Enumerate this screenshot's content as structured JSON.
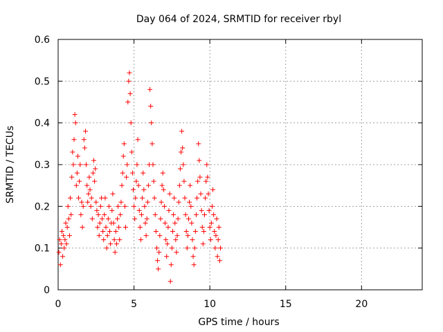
{
  "chart_data": {
    "type": "scatter",
    "title": "Day 064 of 2024, SRMTID for receiver rbyl",
    "xlabel": "GPS time / hours",
    "ylabel": "SRMTID / TECUs",
    "xlim": [
      0,
      24
    ],
    "ylim": [
      0,
      0.6
    ],
    "xticks": [
      0,
      5,
      10,
      15,
      20
    ],
    "xtick_labels": [
      "0",
      "5",
      "10",
      "15",
      "20"
    ],
    "yticks": [
      0,
      0.1,
      0.2,
      0.3,
      0.4,
      0.5,
      0.6
    ],
    "ytick_labels": [
      "0",
      "0.1",
      "0.2",
      "0.3",
      "0.4",
      "0.5",
      "0.6"
    ],
    "grid": true,
    "marker": "+",
    "color": "#ff0000",
    "series": [
      {
        "name": "SRMTID",
        "points": [
          [
            0.05,
            0.09
          ],
          [
            0.1,
            0.12
          ],
          [
            0.15,
            0.06
          ],
          [
            0.2,
            0.11
          ],
          [
            0.25,
            0.14
          ],
          [
            0.3,
            0.08
          ],
          [
            0.35,
            0.13
          ],
          [
            0.4,
            0.1
          ],
          [
            0.45,
            0.12
          ],
          [
            0.5,
            0.16
          ],
          [
            0.55,
            0.11
          ],
          [
            0.6,
            0.15
          ],
          [
            0.65,
            0.2
          ],
          [
            0.7,
            0.17
          ],
          [
            0.75,
            0.13
          ],
          [
            0.8,
            0.22
          ],
          [
            0.85,
            0.18
          ],
          [
            0.9,
            0.27
          ],
          [
            0.95,
            0.33
          ],
          [
            1.0,
            0.3
          ],
          [
            1.05,
            0.36
          ],
          [
            1.1,
            0.42
          ],
          [
            1.15,
            0.4
          ],
          [
            1.2,
            0.25
          ],
          [
            1.25,
            0.28
          ],
          [
            1.3,
            0.32
          ],
          [
            1.35,
            0.22
          ],
          [
            1.4,
            0.26
          ],
          [
            1.45,
            0.3
          ],
          [
            1.5,
            0.18
          ],
          [
            1.55,
            0.21
          ],
          [
            1.6,
            0.15
          ],
          [
            1.65,
            0.2
          ],
          [
            1.7,
            0.36
          ],
          [
            1.75,
            0.34
          ],
          [
            1.8,
            0.38
          ],
          [
            1.85,
            0.3
          ],
          [
            1.9,
            0.25
          ],
          [
            1.95,
            0.21
          ],
          [
            2.0,
            0.23
          ],
          [
            2.05,
            0.27
          ],
          [
            2.1,
            0.24
          ],
          [
            2.15,
            0.2
          ],
          [
            2.2,
            0.22
          ],
          [
            2.25,
            0.17
          ],
          [
            2.3,
            0.28
          ],
          [
            2.35,
            0.31
          ],
          [
            2.4,
            0.26
          ],
          [
            2.45,
            0.29
          ],
          [
            2.5,
            0.21
          ],
          [
            2.55,
            0.19
          ],
          [
            2.6,
            0.15
          ],
          [
            2.65,
            0.18
          ],
          [
            2.7,
            0.13
          ],
          [
            2.75,
            0.16
          ],
          [
            2.8,
            0.2
          ],
          [
            2.85,
            0.22
          ],
          [
            2.9,
            0.17
          ],
          [
            2.95,
            0.14
          ],
          [
            3.0,
            0.12
          ],
          [
            3.05,
            0.18
          ],
          [
            3.1,
            0.22
          ],
          [
            3.15,
            0.15
          ],
          [
            3.2,
            0.1
          ],
          [
            3.25,
            0.13
          ],
          [
            3.3,
            0.17
          ],
          [
            3.35,
            0.2
          ],
          [
            3.4,
            0.14
          ],
          [
            3.45,
            0.11
          ],
          [
            3.5,
            0.16
          ],
          [
            3.55,
            0.19
          ],
          [
            3.6,
            0.23
          ],
          [
            3.65,
            0.16
          ],
          [
            3.7,
            0.12
          ],
          [
            3.75,
            0.09
          ],
          [
            3.8,
            0.14
          ],
          [
            3.85,
            0.11
          ],
          [
            3.9,
            0.17
          ],
          [
            3.95,
            0.2
          ],
          [
            4.0,
            0.15
          ],
          [
            4.05,
            0.12
          ],
          [
            4.1,
            0.18
          ],
          [
            4.15,
            0.21
          ],
          [
            4.2,
            0.25
          ],
          [
            4.25,
            0.28
          ],
          [
            4.3,
            0.32
          ],
          [
            4.35,
            0.35
          ],
          [
            4.4,
            0.2
          ],
          [
            4.45,
            0.15
          ],
          [
            4.5,
            0.27
          ],
          [
            4.55,
            0.3
          ],
          [
            4.6,
            0.45
          ],
          [
            4.65,
            0.5
          ],
          [
            4.7,
            0.52
          ],
          [
            4.75,
            0.47
          ],
          [
            4.8,
            0.4
          ],
          [
            4.85,
            0.33
          ],
          [
            4.9,
            0.28
          ],
          [
            4.95,
            0.24
          ],
          [
            5.0,
            0.2
          ],
          [
            5.05,
            0.17
          ],
          [
            5.1,
            0.22
          ],
          [
            5.15,
            0.26
          ],
          [
            5.2,
            0.3
          ],
          [
            5.25,
            0.36
          ],
          [
            5.3,
            0.25
          ],
          [
            5.35,
            0.19
          ],
          [
            5.4,
            0.15
          ],
          [
            5.45,
            0.12
          ],
          [
            5.5,
            0.18
          ],
          [
            5.55,
            0.22
          ],
          [
            5.6,
            0.28
          ],
          [
            5.65,
            0.24
          ],
          [
            5.7,
            0.2
          ],
          [
            5.75,
            0.16
          ],
          [
            5.8,
            0.13
          ],
          [
            5.85,
            0.17
          ],
          [
            5.9,
            0.21
          ],
          [
            5.95,
            0.25
          ],
          [
            6.0,
            0.3
          ],
          [
            6.05,
            0.48
          ],
          [
            6.1,
            0.44
          ],
          [
            6.15,
            0.4
          ],
          [
            6.2,
            0.35
          ],
          [
            6.25,
            0.3
          ],
          [
            6.3,
            0.26
          ],
          [
            6.35,
            0.22
          ],
          [
            6.4,
            0.18
          ],
          [
            6.45,
            0.14
          ],
          [
            6.5,
            0.1
          ],
          [
            6.55,
            0.07
          ],
          [
            6.6,
            0.05
          ],
          [
            6.65,
            0.09
          ],
          [
            6.7,
            0.13
          ],
          [
            6.75,
            0.17
          ],
          [
            6.8,
            0.21
          ],
          [
            6.85,
            0.25
          ],
          [
            6.9,
            0.28
          ],
          [
            6.95,
            0.24
          ],
          [
            7.0,
            0.2
          ],
          [
            7.05,
            0.16
          ],
          [
            7.1,
            0.12
          ],
          [
            7.15,
            0.08
          ],
          [
            7.2,
            0.11
          ],
          [
            7.25,
            0.15
          ],
          [
            7.3,
            0.19
          ],
          [
            7.35,
            0.23
          ],
          [
            7.4,
            0.02
          ],
          [
            7.45,
            0.06
          ],
          [
            7.5,
            0.1
          ],
          [
            7.55,
            0.14
          ],
          [
            7.6,
            0.18
          ],
          [
            7.65,
            0.22
          ],
          [
            7.7,
            0.16
          ],
          [
            7.75,
            0.12
          ],
          [
            7.8,
            0.09
          ],
          [
            7.85,
            0.13
          ],
          [
            7.9,
            0.17
          ],
          [
            7.95,
            0.21
          ],
          [
            8.0,
            0.25
          ],
          [
            8.05,
            0.29
          ],
          [
            8.1,
            0.33
          ],
          [
            8.15,
            0.38
          ],
          [
            8.2,
            0.34
          ],
          [
            8.25,
            0.3
          ],
          [
            8.3,
            0.26
          ],
          [
            8.35,
            0.22
          ],
          [
            8.4,
            0.18
          ],
          [
            8.45,
            0.14
          ],
          [
            8.5,
            0.1
          ],
          [
            8.55,
            0.13
          ],
          [
            8.6,
            0.17
          ],
          [
            8.65,
            0.21
          ],
          [
            8.7,
            0.25
          ],
          [
            8.75,
            0.2
          ],
          [
            8.8,
            0.16
          ],
          [
            8.85,
            0.12
          ],
          [
            8.9,
            0.08
          ],
          [
            8.95,
            0.06
          ],
          [
            9.0,
            0.1
          ],
          [
            9.05,
            0.14
          ],
          [
            9.1,
            0.18
          ],
          [
            9.15,
            0.22
          ],
          [
            9.2,
            0.26
          ],
          [
            9.25,
            0.35
          ],
          [
            9.3,
            0.31
          ],
          [
            9.35,
            0.27
          ],
          [
            9.4,
            0.23
          ],
          [
            9.45,
            0.19
          ],
          [
            9.5,
            0.15
          ],
          [
            9.55,
            0.11
          ],
          [
            9.6,
            0.14
          ],
          [
            9.65,
            0.18
          ],
          [
            9.7,
            0.22
          ],
          [
            9.75,
            0.26
          ],
          [
            9.8,
            0.3
          ],
          [
            9.85,
            0.27
          ],
          [
            9.9,
            0.23
          ],
          [
            9.95,
            0.19
          ],
          [
            10.0,
            0.15
          ],
          [
            10.05,
            0.12
          ],
          [
            10.1,
            0.16
          ],
          [
            10.15,
            0.2
          ],
          [
            10.2,
            0.24
          ],
          [
            10.25,
            0.18
          ],
          [
            10.3,
            0.14
          ],
          [
            10.35,
            0.1
          ],
          [
            10.4,
            0.13
          ],
          [
            10.45,
            0.17
          ],
          [
            10.5,
            0.08
          ],
          [
            10.55,
            0.12
          ],
          [
            10.6,
            0.15
          ],
          [
            10.65,
            0.07
          ],
          [
            10.7,
            0.1
          ]
        ]
      }
    ]
  }
}
